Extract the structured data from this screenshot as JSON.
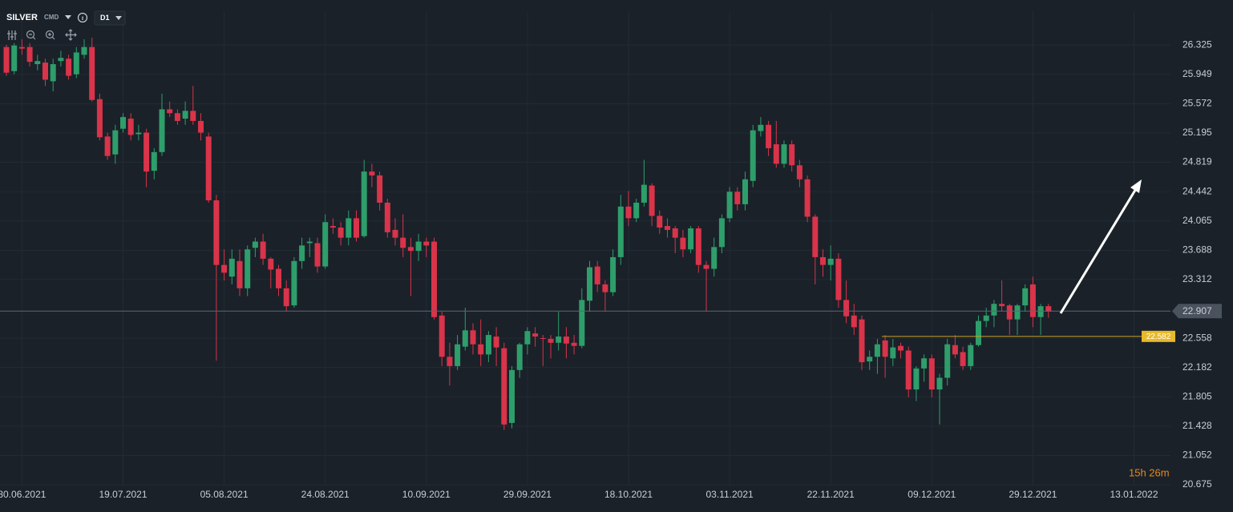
{
  "header": {
    "symbol": "SILVER",
    "market": "CMD",
    "timeframe": "D1"
  },
  "chart_data": {
    "type": "candlestick",
    "up_color": "#2e9e6b",
    "down_color": "#d9344a",
    "grid": true,
    "ylim": [
      20.48,
      26.76
    ],
    "yticks": [
      26.325,
      25.949,
      25.572,
      25.195,
      24.819,
      24.442,
      24.065,
      23.688,
      23.312,
      22.558,
      22.182,
      21.805,
      21.428,
      21.052,
      20.675
    ],
    "xticks": [
      "30.06.2021",
      "19.07.2021",
      "05.08.2021",
      "24.08.2021",
      "10.09.2021",
      "29.09.2021",
      "18.10.2021",
      "03.11.2021",
      "22.11.2021",
      "09.12.2021",
      "29.12.2021",
      "13.01.2022"
    ],
    "current_price": 22.907,
    "level": 22.582,
    "countdown": "15h 26m",
    "open": [
      26.3,
      25.99,
      26.3,
      26.3,
      26.08,
      26.1,
      25.86,
      26.12,
      26.15,
      25.95,
      26.2,
      26.3,
      25.63,
      25.15,
      24.92,
      25.25,
      25.38,
      25.18,
      25.2,
      24.71,
      24.95,
      25.5,
      25.45,
      25.38,
      25.48,
      25.35,
      25.15,
      24.33,
      23.5,
      23.35,
      23.55,
      23.2,
      23.72,
      23.8,
      23.58,
      23.45,
      23.2,
      22.98,
      23.55,
      23.78,
      23.78,
      23.48,
      24.0,
      23.98,
      23.85,
      24.1,
      23.87,
      24.7,
      24.65,
      24.3,
      23.95,
      23.85,
      23.73,
      23.68,
      23.8,
      23.8,
      22.85,
      22.32,
      22.2,
      22.45,
      22.66,
      22.48,
      22.35,
      22.58,
      22.43,
      21.47,
      22.15,
      22.48,
      22.62,
      22.56,
      22.55,
      22.5,
      22.58,
      22.5,
      22.46,
      23.04,
      23.48,
      23.25,
      23.15,
      23.6,
      24.25,
      24.1,
      24.3,
      24.52,
      24.13,
      24.0,
      23.97,
      23.85,
      23.7,
      23.97,
      23.5,
      23.45,
      23.73,
      24.1,
      24.44,
      24.28,
      24.58,
      25.22,
      25.3,
      25.05,
      24.8,
      25.05,
      24.78,
      24.6,
      24.12,
      23.6,
      23.5,
      23.58,
      23.05,
      22.85,
      22.8,
      22.26,
      22.32,
      22.53,
      22.3,
      22.46,
      22.4,
      21.9,
      22.17,
      22.3,
      21.9,
      22.05,
      22.47,
      22.38,
      22.2,
      22.47,
      22.78,
      22.85,
      23.0,
      22.98,
      22.8,
      22.98,
      23.25,
      22.83,
      22.97
    ],
    "high": [
      26.33,
      26.35,
      26.4,
      26.35,
      26.2,
      26.15,
      26.15,
      26.25,
      26.2,
      26.3,
      26.4,
      26.42,
      25.7,
      25.2,
      25.3,
      25.45,
      25.45,
      25.3,
      25.25,
      25.0,
      25.7,
      25.6,
      25.5,
      25.6,
      25.8,
      25.45,
      25.2,
      24.4,
      23.7,
      23.7,
      23.7,
      23.75,
      23.85,
      23.9,
      23.6,
      23.5,
      23.3,
      23.6,
      23.85,
      23.85,
      23.85,
      24.15,
      24.1,
      24.05,
      24.2,
      24.2,
      24.85,
      24.8,
      24.7,
      24.35,
      24.1,
      24.15,
      23.85,
      23.9,
      23.85,
      23.85,
      22.9,
      22.5,
      22.6,
      22.95,
      22.75,
      22.8,
      22.65,
      22.7,
      22.5,
      22.2,
      22.5,
      22.7,
      22.7,
      22.6,
      22.6,
      22.9,
      22.7,
      22.6,
      23.2,
      23.55,
      23.55,
      23.3,
      23.7,
      24.4,
      24.45,
      24.35,
      24.85,
      24.55,
      24.2,
      24.1,
      24.0,
      23.95,
      24.0,
      24.0,
      23.55,
      23.85,
      24.15,
      24.5,
      24.5,
      24.7,
      25.3,
      25.4,
      25.35,
      25.35,
      25.1,
      25.1,
      24.85,
      24.65,
      24.15,
      23.7,
      23.75,
      23.65,
      23.3,
      23.0,
      22.85,
      22.4,
      22.55,
      22.6,
      22.55,
      22.5,
      22.45,
      22.2,
      22.35,
      22.35,
      22.1,
      22.55,
      22.6,
      22.45,
      22.5,
      22.85,
      22.95,
      23.05,
      23.3,
      23.0,
      23.0,
      23.25,
      23.35,
      23.0,
      23.0
    ],
    "low": [
      25.93,
      25.95,
      26.2,
      26.05,
      26.0,
      25.8,
      25.73,
      26.05,
      25.88,
      25.9,
      26.15,
      25.6,
      25.1,
      24.85,
      24.8,
      25.2,
      25.1,
      25.1,
      24.5,
      24.6,
      24.9,
      25.4,
      25.3,
      25.3,
      25.3,
      25.1,
      24.3,
      22.27,
      23.3,
      23.25,
      23.1,
      23.1,
      23.6,
      23.5,
      23.2,
      23.1,
      22.9,
      22.95,
      23.45,
      23.6,
      23.4,
      23.45,
      23.9,
      23.75,
      23.75,
      23.8,
      23.85,
      24.5,
      24.2,
      23.85,
      23.75,
      23.6,
      23.1,
      23.55,
      23.6,
      22.8,
      22.2,
      21.95,
      22.15,
      22.4,
      22.35,
      22.2,
      22.25,
      22.2,
      21.38,
      21.4,
      22.05,
      22.35,
      22.45,
      22.2,
      22.3,
      22.4,
      22.3,
      22.35,
      22.43,
      22.9,
      23.15,
      22.9,
      23.1,
      23.5,
      24.0,
      24.05,
      24.25,
      24.0,
      23.9,
      23.85,
      23.65,
      23.6,
      23.65,
      23.4,
      22.9,
      23.35,
      23.65,
      24.05,
      24.2,
      24.2,
      24.5,
      25.15,
      24.9,
      24.75,
      24.75,
      24.7,
      24.5,
      24.05,
      23.25,
      23.35,
      23.3,
      22.95,
      22.75,
      22.6,
      22.15,
      22.15,
      22.1,
      22.05,
      22.2,
      22.3,
      21.8,
      21.75,
      22.0,
      21.8,
      21.45,
      21.95,
      22.3,
      22.15,
      22.15,
      22.45,
      22.7,
      22.7,
      22.9,
      22.6,
      22.6,
      22.9,
      22.7,
      22.6,
      22.82
    ],
    "close": [
      25.97,
      26.32,
      26.28,
      26.11,
      26.12,
      25.88,
      26.08,
      26.16,
      25.93,
      26.23,
      26.3,
      25.62,
      25.14,
      24.9,
      25.23,
      25.4,
      25.17,
      25.2,
      24.7,
      24.95,
      25.5,
      25.45,
      25.35,
      25.48,
      25.35,
      25.2,
      24.33,
      23.5,
      23.4,
      23.58,
      23.2,
      23.7,
      23.8,
      23.58,
      23.44,
      23.2,
      22.97,
      23.55,
      23.75,
      23.8,
      23.48,
      24.05,
      23.98,
      23.85,
      24.1,
      23.85,
      24.7,
      24.65,
      24.3,
      23.92,
      23.85,
      23.72,
      23.68,
      23.8,
      23.75,
      22.83,
      22.32,
      22.2,
      22.48,
      22.66,
      22.48,
      22.35,
      22.6,
      22.44,
      21.45,
      22.15,
      22.48,
      22.65,
      22.58,
      22.55,
      22.5,
      22.58,
      22.49,
      22.46,
      23.05,
      23.47,
      23.25,
      23.15,
      23.6,
      24.25,
      24.1,
      24.3,
      24.53,
      24.13,
      23.98,
      23.95,
      23.85,
      23.7,
      23.97,
      23.5,
      23.45,
      23.73,
      24.1,
      24.44,
      24.28,
      24.6,
      25.23,
      25.3,
      25.0,
      24.8,
      25.05,
      24.78,
      24.6,
      24.12,
      23.6,
      23.5,
      23.58,
      23.05,
      22.84,
      22.7,
      22.25,
      22.32,
      22.48,
      22.32,
      22.44,
      22.4,
      21.9,
      22.17,
      22.3,
      21.9,
      22.05,
      22.48,
      22.35,
      22.2,
      22.47,
      22.78,
      22.85,
      23.0,
      22.97,
      22.8,
      22.98,
      23.2,
      22.83,
      22.97,
      22.9
    ]
  }
}
